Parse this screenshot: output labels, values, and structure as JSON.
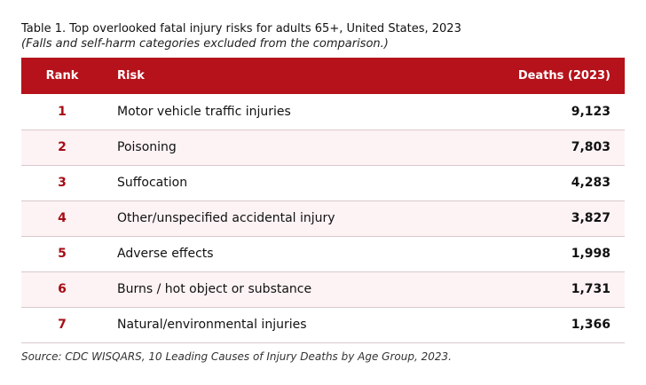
{
  "caption": {
    "title": "Table 1. Top overlooked fatal injury risks for adults 65+, United States, 2023",
    "subtitle": "(Falls and self-harm categories excluded from the comparison.)"
  },
  "table": {
    "headers": {
      "rank": "Rank",
      "risk": "Risk",
      "deaths": "Deaths (2023)"
    },
    "rows": [
      {
        "rank": "1",
        "risk": "Motor vehicle traffic injuries",
        "deaths": "9,123"
      },
      {
        "rank": "2",
        "risk": "Poisoning",
        "deaths": "7,803"
      },
      {
        "rank": "3",
        "risk": "Suffocation",
        "deaths": "4,283"
      },
      {
        "rank": "4",
        "risk": "Other/unspecified accidental injury",
        "deaths": "3,827"
      },
      {
        "rank": "5",
        "risk": "Adverse effects",
        "deaths": "1,998"
      },
      {
        "rank": "6",
        "risk": "Burns / hot object or substance",
        "deaths": "1,731"
      },
      {
        "rank": "7",
        "risk": "Natural/environmental injuries",
        "deaths": "1,366"
      }
    ]
  },
  "source": "Source: CDC WISQARS, 10 Leading Causes of Injury Deaths by Age Group, 2023.",
  "colors": {
    "header_bg": "#b5121b",
    "rank_text": "#a50e16",
    "stripe_bg": "#fdf3f4"
  }
}
